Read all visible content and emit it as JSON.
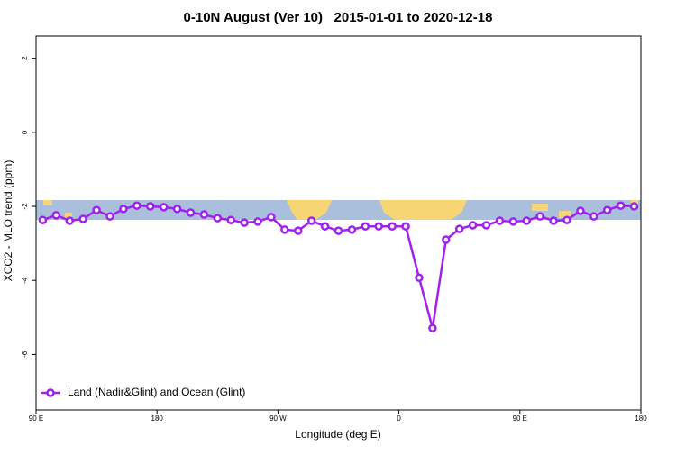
{
  "chart_data": {
    "type": "line",
    "title": "0-10N August (Ver 10)   2015-01-01 to 2020-12-18",
    "x_label": "Longitude (deg E)",
    "y_label": "XCO2 - MLO trend (ppm)",
    "x": [
      95,
      105,
      115,
      125,
      135,
      145,
      155,
      165,
      175,
      185,
      195,
      205,
      215,
      225,
      235,
      245,
      255,
      265,
      275,
      285,
      295,
      305,
      315,
      325,
      335,
      345,
      355,
      365,
      375,
      385,
      395,
      405,
      415,
      425,
      435,
      445,
      455,
      465,
      475,
      485,
      495,
      505,
      515,
      525,
      535
    ],
    "series": [
      {
        "name": "Land (Nadir&Glint) and Ocean (Glint)",
        "color": "#a020f0",
        "values": [
          -2.37,
          -2.24,
          -2.39,
          -2.34,
          -2.1,
          -2.27,
          -2.07,
          -1.98,
          -2.0,
          -2.02,
          -2.07,
          -2.17,
          -2.22,
          -2.32,
          -2.37,
          -2.44,
          -2.41,
          -2.29,
          -2.63,
          -2.66,
          -2.39,
          -2.54,
          -2.66,
          -2.63,
          -2.54,
          -2.54,
          -2.54,
          -2.54,
          -3.93,
          -5.29,
          -2.9,
          -2.61,
          -2.51,
          -2.51,
          -2.39,
          -2.41,
          -2.39,
          -2.27,
          -2.39,
          -2.37,
          -2.12,
          -2.27,
          -2.1,
          -1.98,
          -2.0
        ]
      }
    ],
    "xlim": [
      90,
      540
    ],
    "xticks": [
      {
        "value": 90,
        "label": "90 E"
      },
      {
        "value": 180,
        "label": "180"
      },
      {
        "value": 270,
        "label": "90 W"
      },
      {
        "value": 360,
        "label": "0"
      },
      {
        "value": 450,
        "label": "90 E"
      },
      {
        "value": 540,
        "label": "180"
      }
    ],
    "ylim": [
      -7.5,
      2.6
    ],
    "yticks": [
      2,
      0,
      -2,
      -4,
      -6
    ],
    "legend": "bottom-left"
  }
}
